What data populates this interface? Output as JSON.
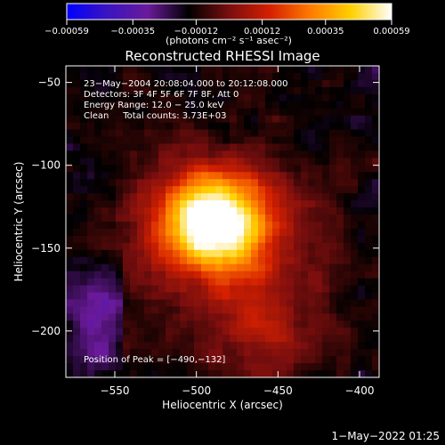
{
  "chart_data": {
    "type": "heatmap",
    "title": "Reconstructed RHESSI Image",
    "xlabel": "Heliocentric X (arcsec)",
    "ylabel": "Heliocentric Y (arcsec)",
    "xlim": [
      -580,
      -388
    ],
    "ylim": [
      -228,
      -40
    ],
    "xticks": [
      -550,
      -500,
      -450,
      -400
    ],
    "yticks": [
      -50,
      -100,
      -150,
      -200
    ],
    "xtick_labels": [
      "−550",
      "−500",
      "−450",
      "−400"
    ],
    "ytick_labels": [
      "−50",
      "−100",
      "−150",
      "−200"
    ],
    "colorbar": {
      "ticks": [
        -0.00059,
        -0.00035,
        -0.00012,
        0.00012,
        0.00035,
        0.00059
      ],
      "tick_labels": [
        "−0.00059",
        "−0.00035",
        "−0.00012",
        "0.00012",
        "0.00035",
        "0.00059"
      ],
      "units_label": "(photons cm⁻² s⁻¹ asec⁻²)",
      "stops": [
        "#0000ff",
        "#3a14c0",
        "#6a1a9a",
        "#000000",
        "#7a0e0e",
        "#d42000",
        "#ff7a00",
        "#ffd000",
        "#ffffff"
      ]
    },
    "peak": {
      "x": -490,
      "y": -132
    },
    "annotations": [
      "23−May−2004 20:08:04.000 to 20:12:08.000",
      "Detectors: 3F 4F 5F 6F 7F 8F, Att 0",
      "Energy Range: 12.0 − 25.0 keV",
      "Clean     Total counts: 3.73E+03"
    ],
    "peak_label": "Position of Peak = [−490,−132]",
    "timestamp": "1−May−2022 01:25"
  }
}
